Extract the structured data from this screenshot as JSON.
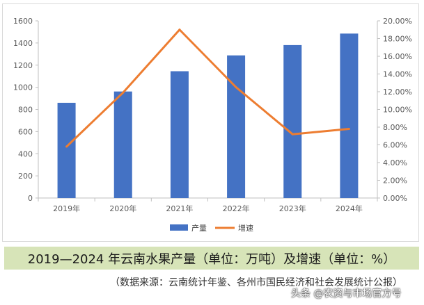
{
  "chart_data": {
    "type": "bar",
    "categories": [
      "2019年",
      "2020年",
      "2021年",
      "2022年",
      "2023年",
      "2024年"
    ],
    "series": [
      {
        "name": "产量",
        "type": "bar",
        "axis": "left",
        "color": "#4472C4",
        "values": [
          860,
          962,
          1145,
          1288,
          1381,
          1485
        ]
      },
      {
        "name": "增速",
        "type": "line",
        "axis": "right",
        "color": "#ED7D31",
        "values": [
          5.8,
          11.9,
          19.0,
          12.5,
          7.2,
          7.8
        ]
      }
    ],
    "y_left": {
      "min": 0,
      "max": 1600,
      "step": 200,
      "tick_labels": [
        "0",
        "200",
        "400",
        "600",
        "800",
        "1000",
        "1200",
        "1400",
        "1600"
      ]
    },
    "y_right": {
      "min": 0,
      "max": 20,
      "step": 2,
      "tick_labels": [
        "0.00%",
        "2.00%",
        "4.00%",
        "6.00%",
        "8.00%",
        "10.00%",
        "12.00%",
        "14.00%",
        "16.00%",
        "18.00%",
        "20.00%"
      ]
    },
    "grid": false,
    "legend_position": "bottom"
  },
  "caption": "2019—2024 年云南水果产量（单位：万吨）及增速（单位：%）",
  "source": "（数据来源：云南统计年鉴、各州市国民经济和社会发展统计公报）",
  "watermark": "头条 @农资与市场官方号"
}
